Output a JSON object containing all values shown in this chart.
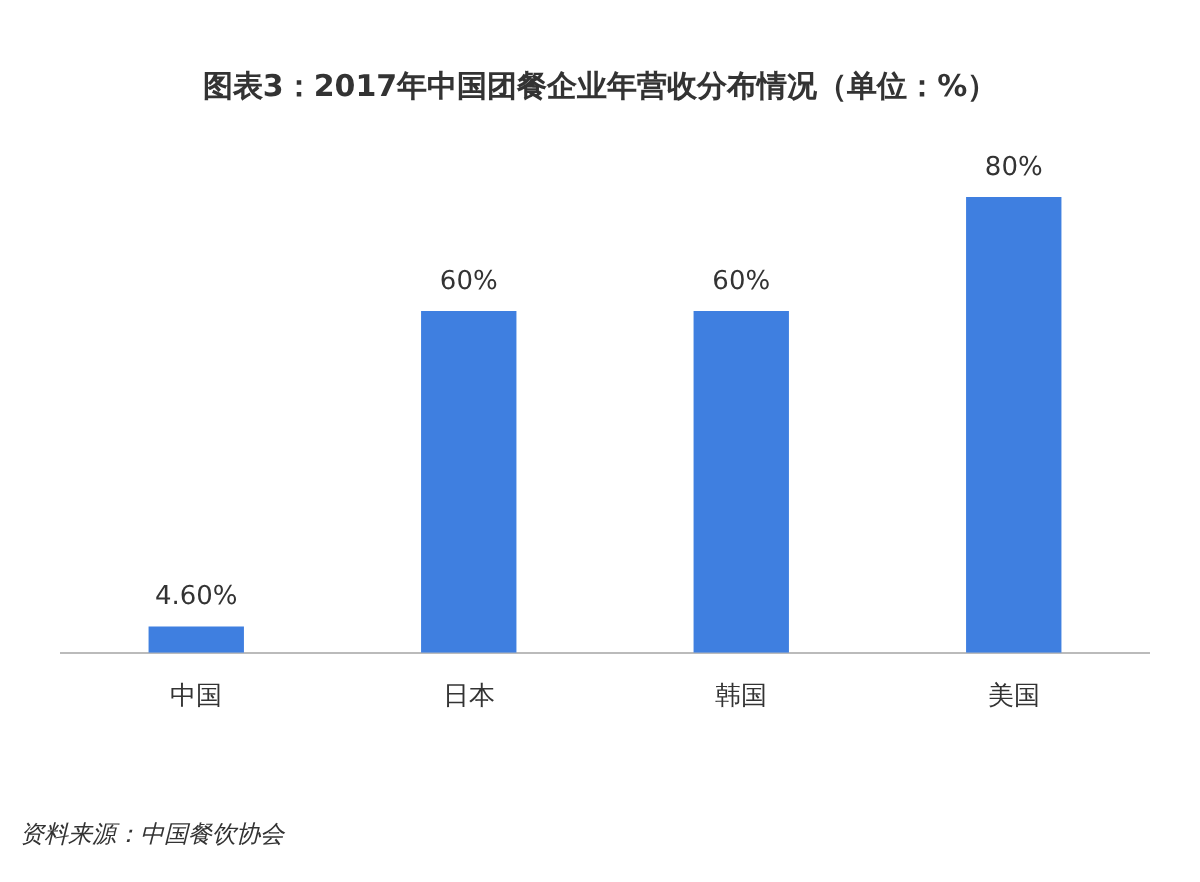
{
  "chart_data": {
    "type": "bar",
    "title": "图表3：2017年中国团餐企业年营收分布情况（单位：%）",
    "categories": [
      "中国",
      "日本",
      "韩国",
      "美国"
    ],
    "values": [
      4.6,
      60,
      60,
      80
    ],
    "value_labels": [
      "4.60%",
      "60%",
      "60%",
      "80%"
    ],
    "color": "#3f7fe0",
    "tick_labels": "x",
    "grid": false,
    "legend": false,
    "annotations": [
      "资料来源：中国餐饮协会"
    ]
  }
}
